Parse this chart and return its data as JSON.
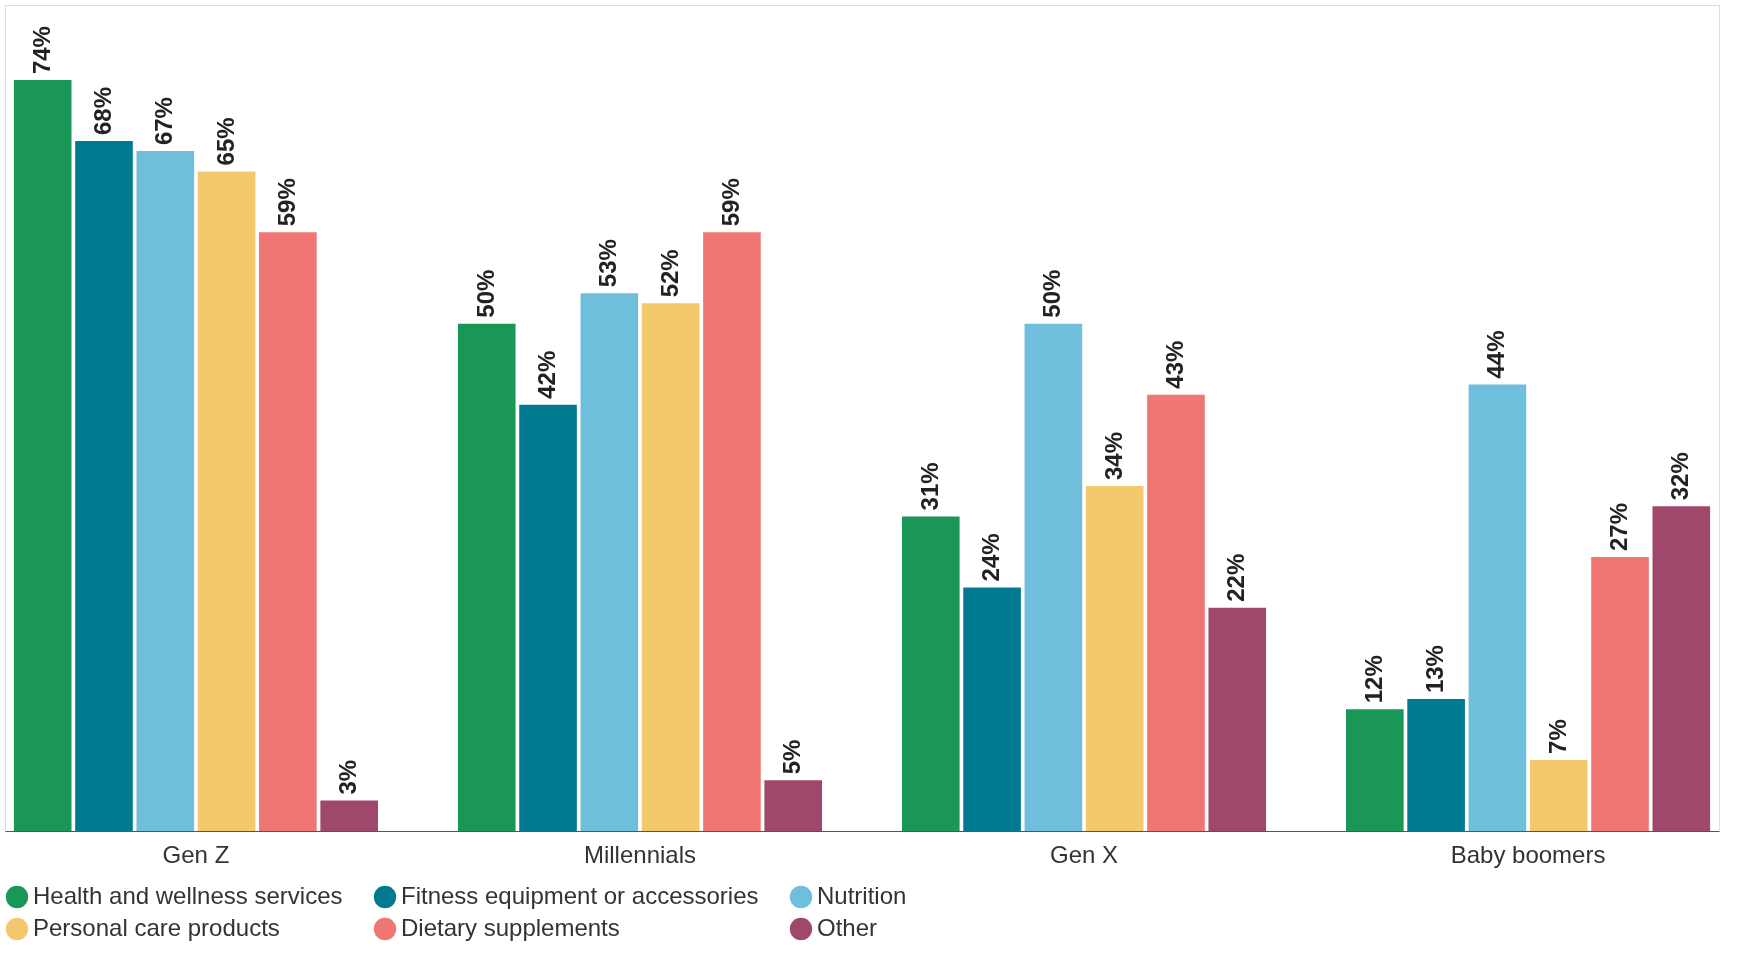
{
  "chart_data": {
    "type": "bar",
    "categories": [
      "Gen Z",
      "Millennials",
      "Gen X",
      "Baby boomers"
    ],
    "legend": "bottom",
    "series": [
      {
        "name": "Health and wellness services",
        "color": "#1a9656",
        "values": [
          74,
          50,
          31,
          12
        ],
        "value_labels": [
          "74%",
          "50%",
          "31%",
          "12%"
        ]
      },
      {
        "name": "Fitness equipment or accessories",
        "color": "#007a91",
        "values": [
          68,
          42,
          24,
          13
        ],
        "value_labels": [
          "68%",
          "42%",
          "24%",
          "13%"
        ]
      },
      {
        "name": "Nutrition",
        "color": "#6fbedc",
        "values": [
          67,
          53,
          50,
          44
        ],
        "value_labels": [
          "67%",
          "53%",
          "50%",
          "44%"
        ]
      },
      {
        "name": "Personal care products",
        "color": "#f4c96e",
        "values": [
          65,
          52,
          34,
          7
        ],
        "value_labels": [
          "65%",
          "52%",
          "34%",
          "7%"
        ]
      },
      {
        "name": "Dietary supplements",
        "color": "#f07673",
        "values": [
          59,
          59,
          43,
          27
        ],
        "value_labels": [
          "59%",
          "59%",
          "43%",
          "27%"
        ]
      },
      {
        "name": "Other",
        "color": "#a0476c",
        "values": [
          3,
          5,
          22,
          32
        ],
        "value_labels": [
          "3%",
          "5%",
          "22%",
          "32%"
        ]
      }
    ]
  }
}
